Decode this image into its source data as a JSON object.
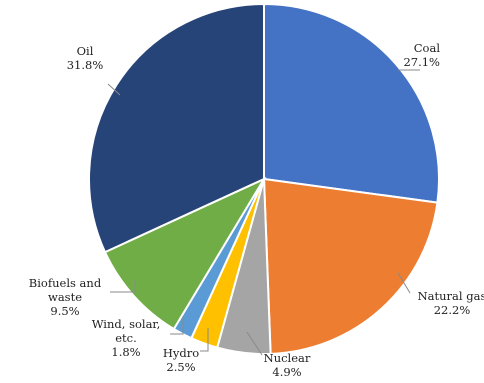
{
  "chart_data": {
    "type": "pie",
    "start": "12 o'clock",
    "direction": "clockwise",
    "slices": [
      {
        "name": "Coal",
        "value": 27.1,
        "label_lines": [
          "Coal",
          "27.1%"
        ],
        "color": "#4472C4"
      },
      {
        "name": "Natural gas",
        "value": 22.2,
        "label_lines": [
          "Natural gas",
          "22.2%"
        ],
        "color": "#ED7D31"
      },
      {
        "name": "Nuclear",
        "value": 4.9,
        "label_lines": [
          "Nuclear",
          "4.9%"
        ],
        "color": "#A5A5A5"
      },
      {
        "name": "Hydro",
        "value": 2.5,
        "label_lines": [
          "Hydro",
          "2.5%"
        ],
        "color": "#FFC000"
      },
      {
        "name": "Wind, solar, etc.",
        "value": 1.8,
        "label_lines": [
          "Wind, solar,",
          "etc.",
          "1.8%"
        ],
        "color": "#5B9BD5"
      },
      {
        "name": "Biofuels and waste",
        "value": 9.5,
        "label_lines": [
          "Biofuels and",
          "waste",
          "9.5%"
        ],
        "color": "#70AD47"
      },
      {
        "name": "Oil",
        "value": 31.8,
        "label_lines": [
          "Oil",
          "31.8%"
        ],
        "color": "#264478"
      }
    ]
  }
}
